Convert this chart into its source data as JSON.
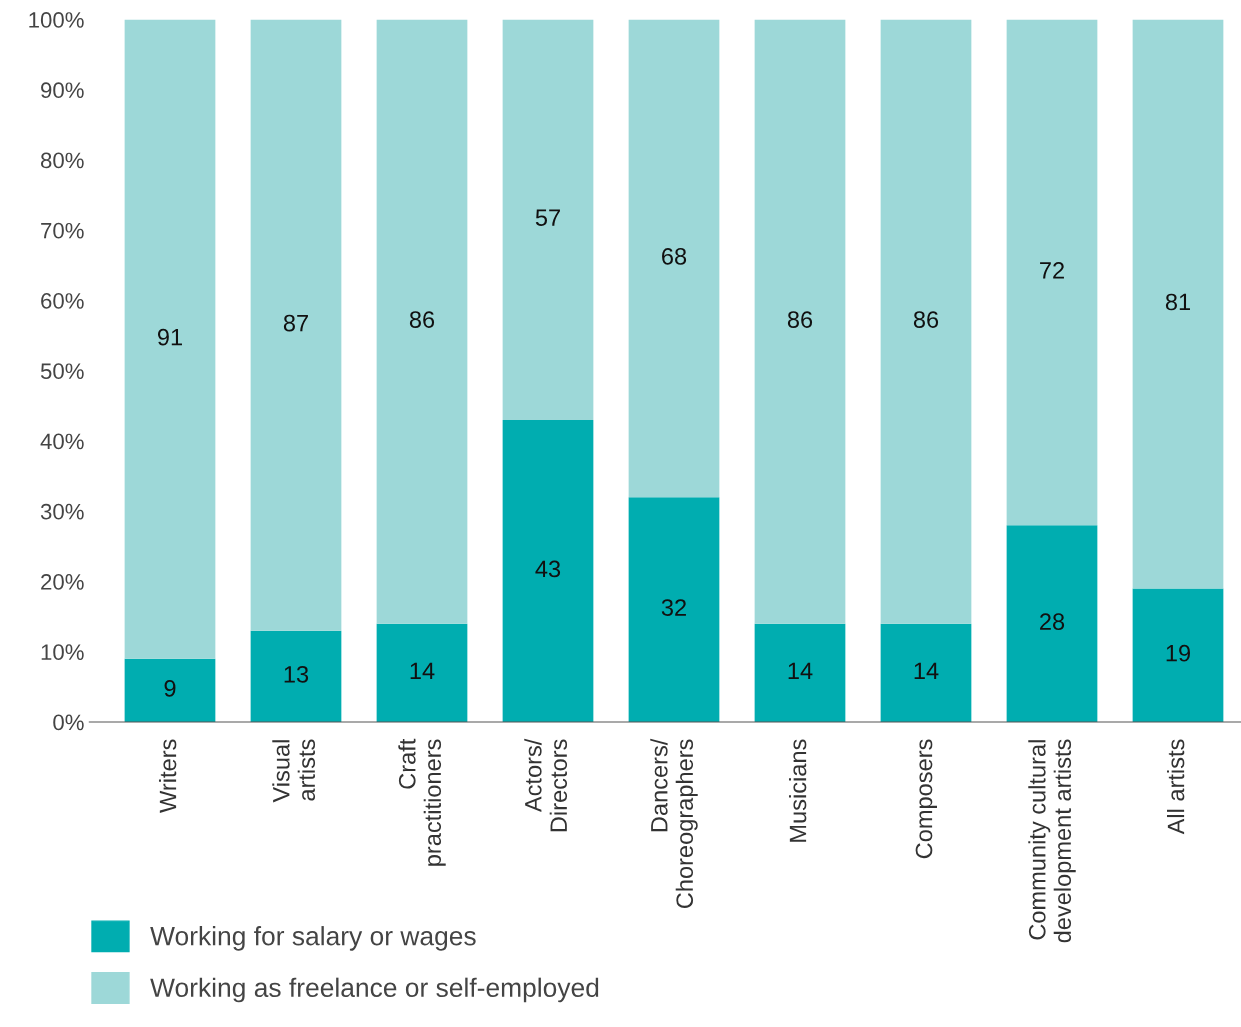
{
  "chart_data": {
    "type": "bar",
    "stacked": true,
    "categories": [
      "Writers",
      "Visual\nartists",
      "Craft\npractitioners",
      "Actors/\nDirectors",
      "Dancers/\nChoreographers",
      "Musicians",
      "Composers",
      "Community cultural\ndevelopment artists",
      "All artists"
    ],
    "series": [
      {
        "name": "Working for salary or wages",
        "color": "#00adb0",
        "values": [
          9,
          13,
          14,
          43,
          32,
          14,
          14,
          28,
          19
        ]
      },
      {
        "name": "Working as freelance or self-employed",
        "color": "#9dd8d8",
        "values": [
          91,
          87,
          86,
          57,
          68,
          86,
          86,
          72,
          81
        ]
      }
    ],
    "ylim": [
      0,
      100
    ],
    "yticks": [
      {
        "value": 0,
        "label": "0%"
      },
      {
        "value": 10,
        "label": "10%"
      },
      {
        "value": 20,
        "label": "20%"
      },
      {
        "value": 30,
        "label": "30%"
      },
      {
        "value": 40,
        "label": "40%"
      },
      {
        "value": 50,
        "label": "50%"
      },
      {
        "value": 60,
        "label": "60%"
      },
      {
        "value": 70,
        "label": "70%"
      },
      {
        "value": 80,
        "label": "80%"
      },
      {
        "value": 90,
        "label": "90%"
      },
      {
        "value": 100,
        "label": "100%"
      }
    ],
    "data_labels": true,
    "grid": false,
    "legend": "bottom left"
  }
}
